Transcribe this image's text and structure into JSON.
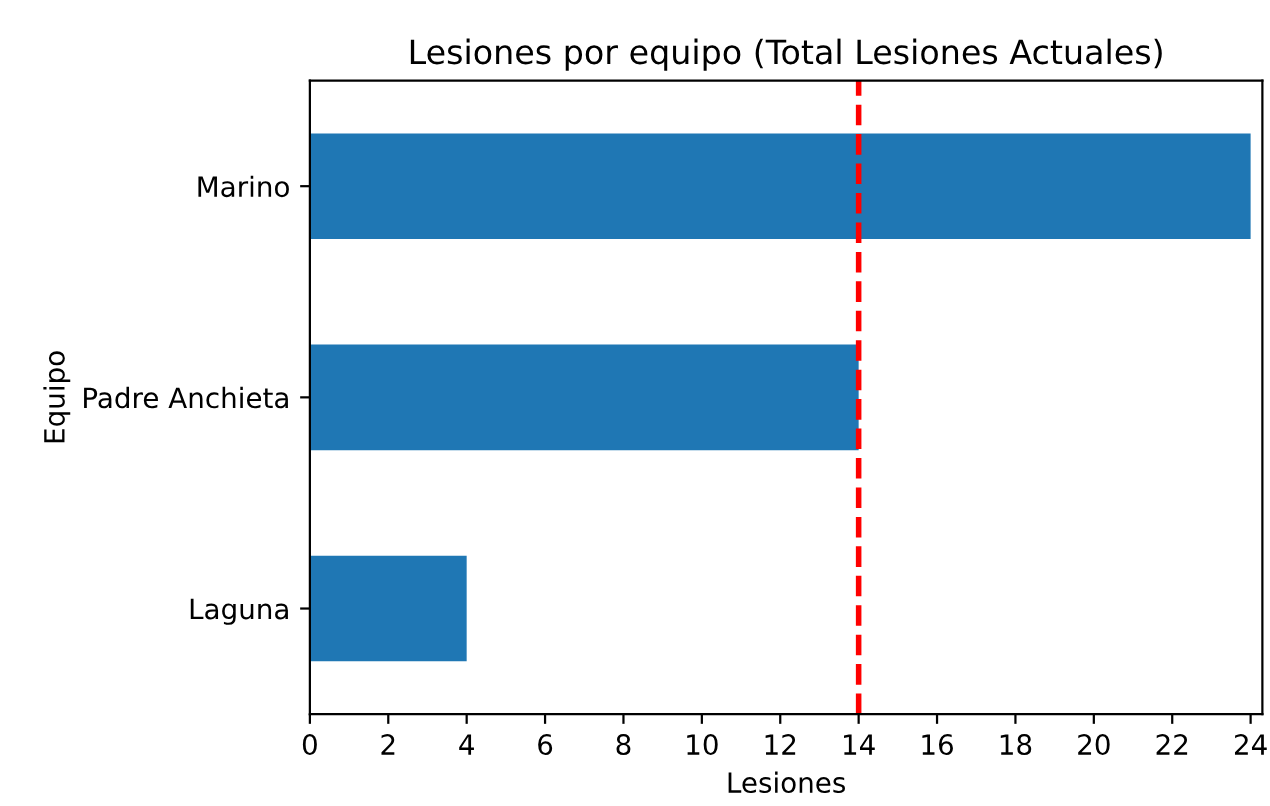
{
  "chart_data": {
    "type": "bar",
    "orientation": "horizontal",
    "title": "Lesiones por equipo (Total Lesiones Actuales)",
    "xlabel": "Lesiones",
    "ylabel": "Equipo",
    "categories": [
      "Marino",
      "Padre Anchieta",
      "Laguna"
    ],
    "values": [
      24,
      14,
      4
    ],
    "color": "#1f77b4",
    "xlim": [
      0,
      24.3
    ],
    "xticks": [
      0,
      2,
      4,
      6,
      8,
      10,
      12,
      14,
      16,
      18,
      20,
      22,
      24
    ],
    "ref_lines": [
      {
        "axis": "x",
        "value": 14,
        "color": "#ff0000",
        "line_style": "dashed"
      }
    ],
    "grid": false,
    "legend": false
  }
}
